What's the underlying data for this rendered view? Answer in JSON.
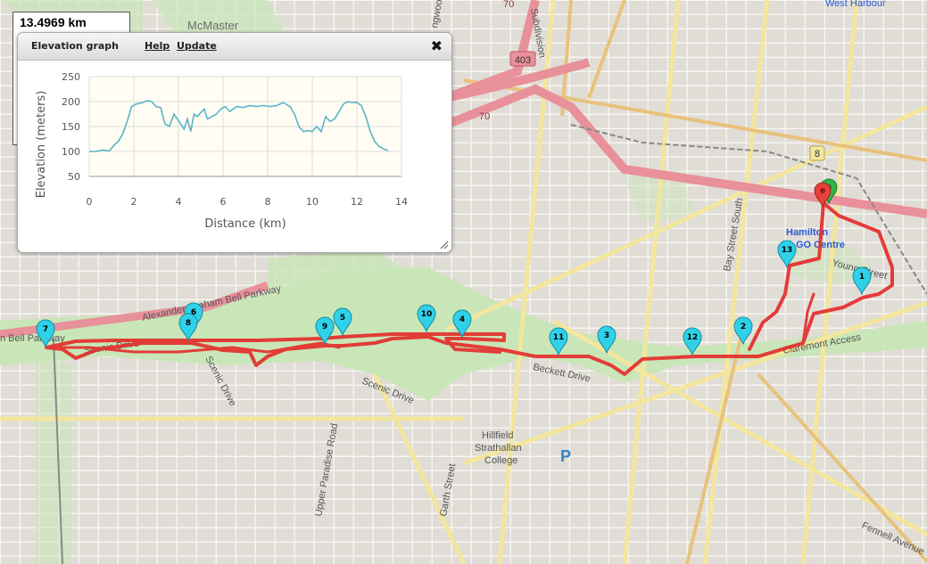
{
  "distance_box": {
    "value": "13.4969 km"
  },
  "elevation_panel": {
    "title": "Elevation graph",
    "help_label": "Help",
    "update_label": "Update",
    "close_symbol": "✖"
  },
  "chart_data": {
    "type": "line",
    "xlabel": "Distance (km)",
    "ylabel": "Elevation (meters)",
    "xlim": [
      0,
      14
    ],
    "ylim": [
      50,
      250
    ],
    "xticks": [
      "0",
      "2",
      "4",
      "6",
      "8",
      "10",
      "12",
      "14"
    ],
    "yticks": [
      "50",
      "100",
      "150",
      "200",
      "250"
    ],
    "grid": true,
    "line_color": "#5ab4c8",
    "series": [
      {
        "x": [
          0,
          0.3,
          0.6,
          0.9,
          1.1,
          1.3,
          1.5,
          1.7,
          1.9,
          2.1,
          2.4,
          2.6,
          2.8,
          3.0,
          3.2,
          3.4,
          3.6,
          3.8,
          3.95,
          4.1,
          4.25,
          4.4,
          4.55,
          4.7,
          4.85,
          5.0,
          5.15,
          5.3,
          5.5,
          5.7,
          5.9,
          6.1,
          6.3,
          6.6,
          6.9,
          7.2,
          7.5,
          7.8,
          8.1,
          8.4,
          8.7,
          9.0,
          9.2,
          9.4,
          9.6,
          9.8,
          10.0,
          10.2,
          10.4,
          10.6,
          10.8,
          11.0,
          11.2,
          11.4,
          11.6,
          11.8,
          12.0,
          12.2,
          12.4,
          12.6,
          12.8,
          13.0,
          13.2,
          13.4
        ],
        "y": [
          100,
          100,
          103,
          101,
          112,
          120,
          135,
          160,
          190,
          195,
          198,
          202,
          200,
          190,
          188,
          155,
          150,
          175,
          165,
          155,
          145,
          165,
          140,
          175,
          170,
          178,
          185,
          165,
          170,
          175,
          185,
          190,
          180,
          190,
          188,
          192,
          190,
          192,
          190,
          192,
          198,
          190,
          175,
          150,
          140,
          142,
          140,
          150,
          140,
          170,
          160,
          165,
          180,
          195,
          200,
          198,
          198,
          192,
          170,
          140,
          120,
          110,
          105,
          102
        ]
      }
    ]
  },
  "map": {
    "labels": {
      "mcmaster": "McMaster",
      "west_harbour": "West Harbour",
      "hamilton_go": "Hamilton\nGO Centre",
      "alexander_graham_bell": "Alexander Graham Bell Parkway",
      "bell_parkway": "n Bell Parkway",
      "scenic_drive_1": "Scenic Drive",
      "scenic_drive_2": "Scenic Drive",
      "scenic_drive_3": "Scenic Drive",
      "upper_paradise": "Upper Paradise Road",
      "garth": "Garth Street",
      "beckett": "Beckett Drive",
      "claremont": "Claremont Access",
      "bay_south": "Bay Street South",
      "fennell": "Fennell Avenue",
      "hillfield": "Hillfield\nStrathallan\nCollege",
      "subdivision": "Subdivision",
      "lockwood": "ngwood",
      "young": "Young Street",
      "hwy_403": "403",
      "hwy_8": "8",
      "hwy_70a": "70",
      "hwy_70b": "70",
      "parking": "P"
    },
    "waypoints": [
      "1",
      "2",
      "3",
      "4",
      "5",
      "6",
      "7",
      "8",
      "9",
      "10",
      "11",
      "12",
      "13"
    ],
    "route_color": "#e52a2a",
    "marker_color": "#2fd1e8",
    "start_color": "#2eb84a",
    "end_color": "#e8413a"
  }
}
